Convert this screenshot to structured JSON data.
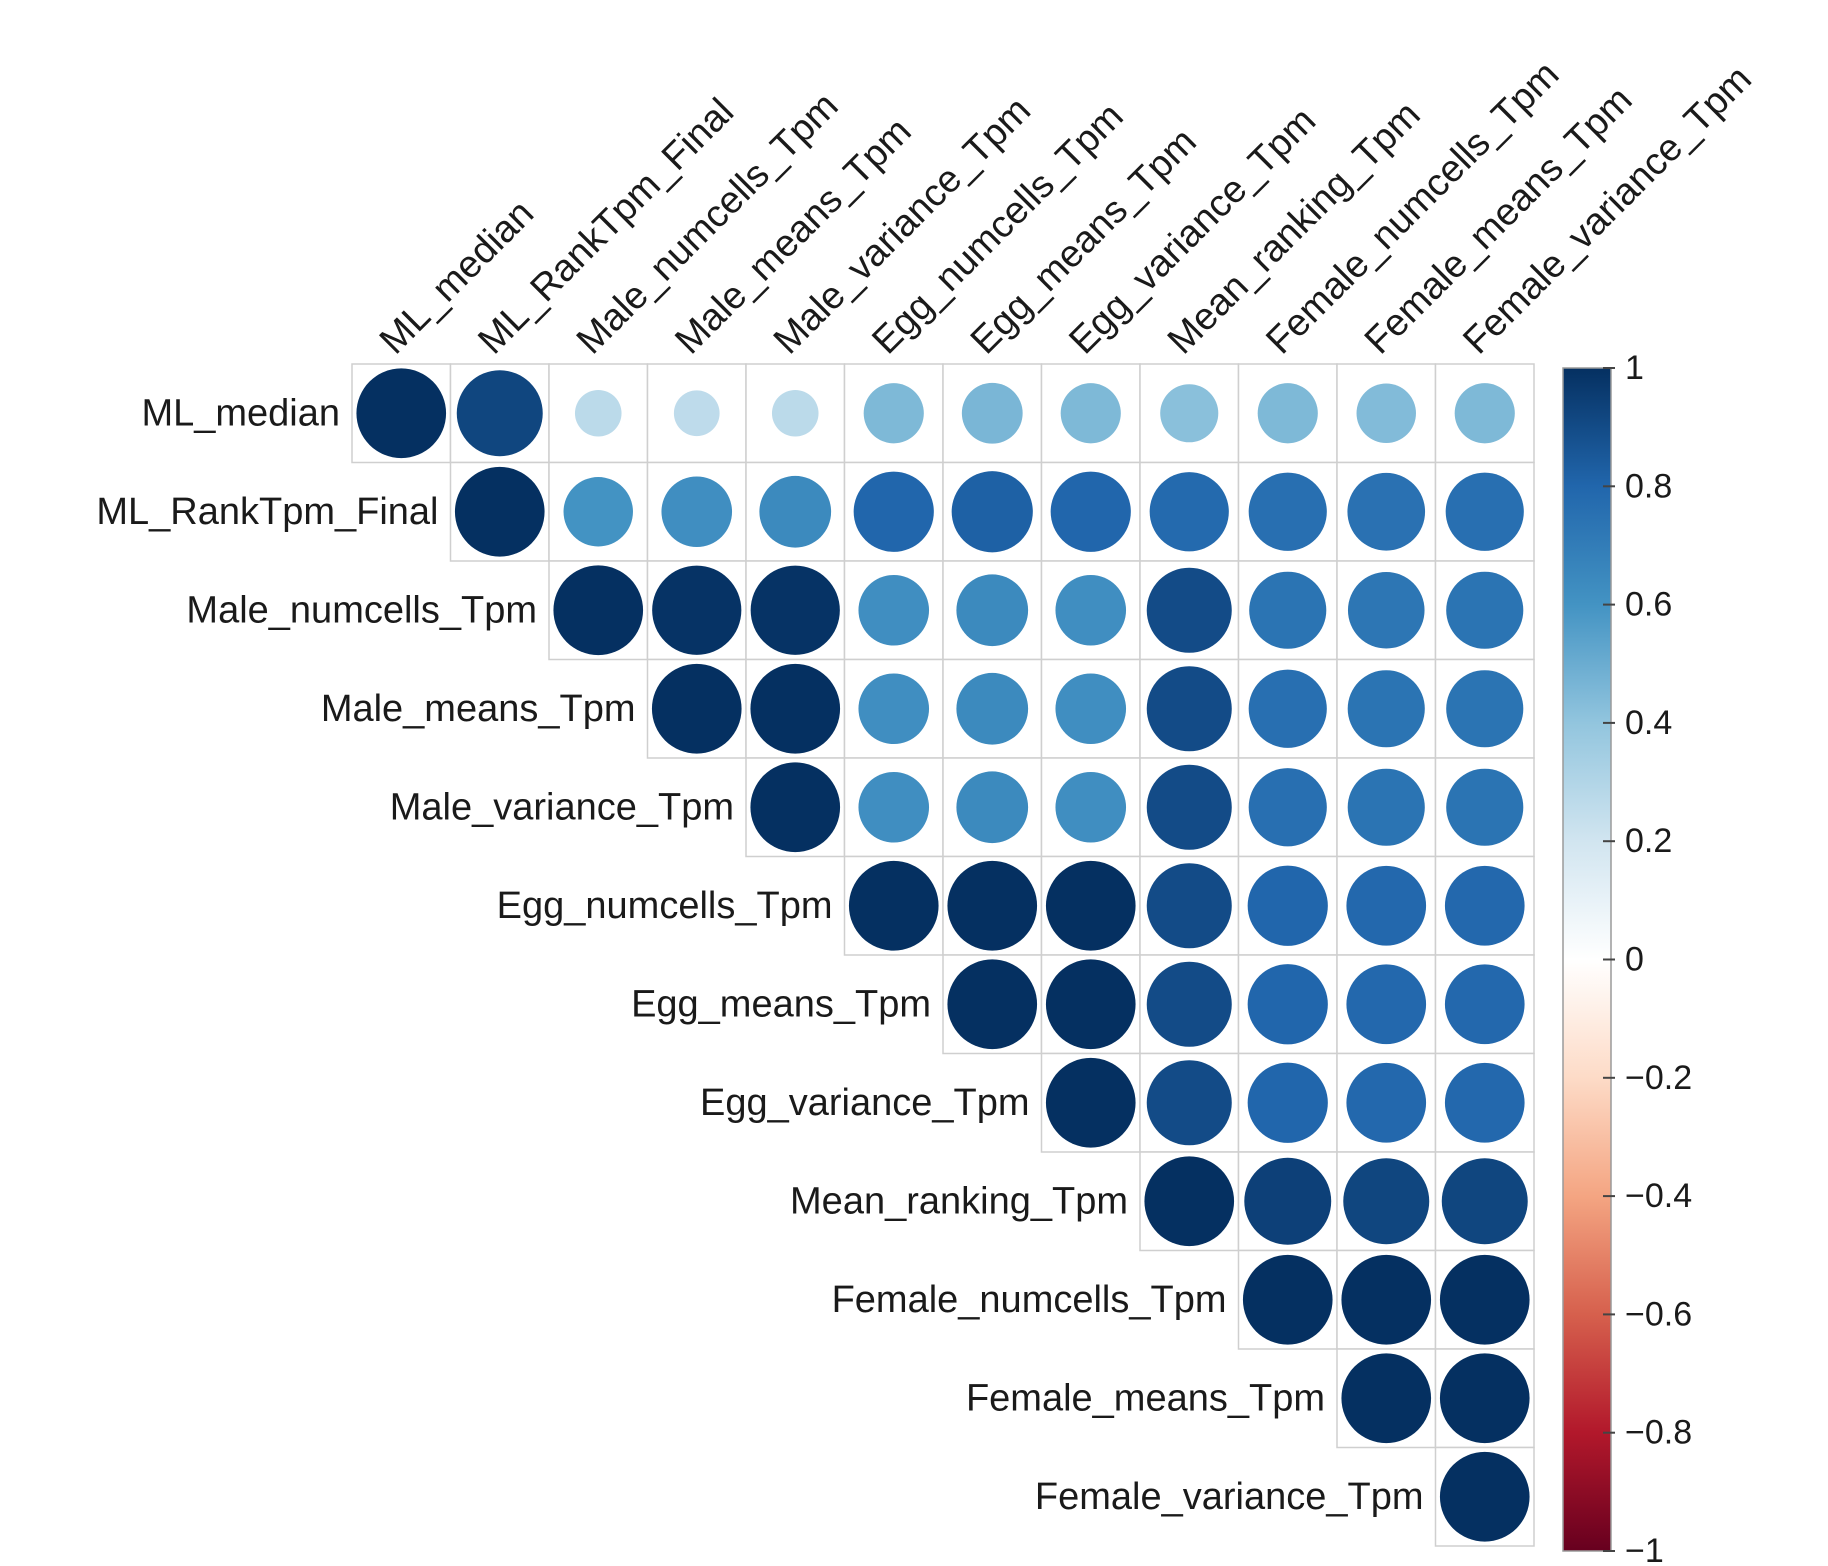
{
  "chart_data": {
    "type": "heatmap",
    "variant": "upper-triangle correlation matrix (circle size and color encode r)",
    "variables": [
      "ML_median",
      "ML_RankTpm_Final",
      "Male_numcells_Tpm",
      "Male_means_Tpm",
      "Male_variance_Tpm",
      "Egg_numcells_Tpm",
      "Egg_means_Tpm",
      "Egg_variance_Tpm",
      "Mean_ranking_Tpm",
      "Female_numcells_Tpm",
      "Female_means_Tpm",
      "Female_variance_Tpm"
    ],
    "matrix": [
      [
        1.0,
        0.92,
        0.27,
        0.26,
        0.27,
        0.45,
        0.46,
        0.45,
        0.42,
        0.45,
        0.44,
        0.45
      ],
      [
        null,
        1.0,
        0.6,
        0.62,
        0.64,
        0.8,
        0.82,
        0.8,
        0.78,
        0.76,
        0.75,
        0.76
      ],
      [
        null,
        null,
        1.0,
        0.99,
        0.99,
        0.62,
        0.64,
        0.62,
        0.9,
        0.74,
        0.73,
        0.74
      ],
      [
        null,
        null,
        null,
        1.0,
        1.0,
        0.62,
        0.64,
        0.62,
        0.9,
        0.76,
        0.74,
        0.74
      ],
      [
        null,
        null,
        null,
        null,
        1.0,
        0.62,
        0.64,
        0.62,
        0.9,
        0.76,
        0.74,
        0.74
      ],
      [
        null,
        null,
        null,
        null,
        null,
        1.0,
        1.0,
        1.0,
        0.9,
        0.8,
        0.79,
        0.79
      ],
      [
        null,
        null,
        null,
        null,
        null,
        null,
        1.0,
        1.0,
        0.9,
        0.8,
        0.79,
        0.79
      ],
      [
        null,
        null,
        null,
        null,
        null,
        null,
        null,
        1.0,
        0.9,
        0.8,
        0.79,
        0.79
      ],
      [
        null,
        null,
        null,
        null,
        null,
        null,
        null,
        null,
        1.0,
        0.94,
        0.92,
        0.92
      ],
      [
        null,
        null,
        null,
        null,
        null,
        null,
        null,
        null,
        null,
        1.0,
        1.0,
        1.0
      ],
      [
        null,
        null,
        null,
        null,
        null,
        null,
        null,
        null,
        null,
        null,
        1.0,
        1.0
      ],
      [
        null,
        null,
        null,
        null,
        null,
        null,
        null,
        null,
        null,
        null,
        null,
        1.0
      ]
    ],
    "colorbar": {
      "range": [
        -1,
        1
      ],
      "ticks": [
        "1",
        "0.8",
        "0.6",
        "0.4",
        "0.2",
        "0",
        "−0.2",
        "−0.4",
        "−0.6",
        "−0.8",
        "−1"
      ],
      "tick_values": [
        1,
        0.8,
        0.6,
        0.4,
        0.2,
        0,
        -0.2,
        -0.4,
        -0.6,
        -0.8,
        -1
      ],
      "colors": [
        "#67001f",
        "#b2182b",
        "#d6604d",
        "#f4a582",
        "#fddbc7",
        "#ffffff",
        "#d1e5f0",
        "#92c5de",
        "#4393c3",
        "#2166ac",
        "#053061"
      ],
      "placement": "right"
    },
    "title": "",
    "xlabel": "",
    "ylabel": "",
    "grid": true
  }
}
